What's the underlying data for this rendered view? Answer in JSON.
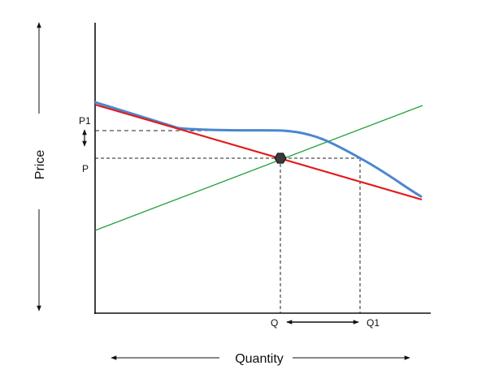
{
  "labels": {
    "y_axis": "Price",
    "x_axis": "Quantity",
    "p1": "P1",
    "p": "P",
    "q": "Q",
    "q1": "Q1"
  },
  "colors": {
    "axes": "#111111",
    "supply_line": "#1f9e3a",
    "demand_line": "#e31b1b",
    "kinked_curve": "#4a86d0",
    "guide_lines": "#222222",
    "equilibrium_point": "#3a3a3a"
  },
  "icons": {
    "equilibrium_marker": "hexagon",
    "arrows": "double-headed-arrow"
  }
}
